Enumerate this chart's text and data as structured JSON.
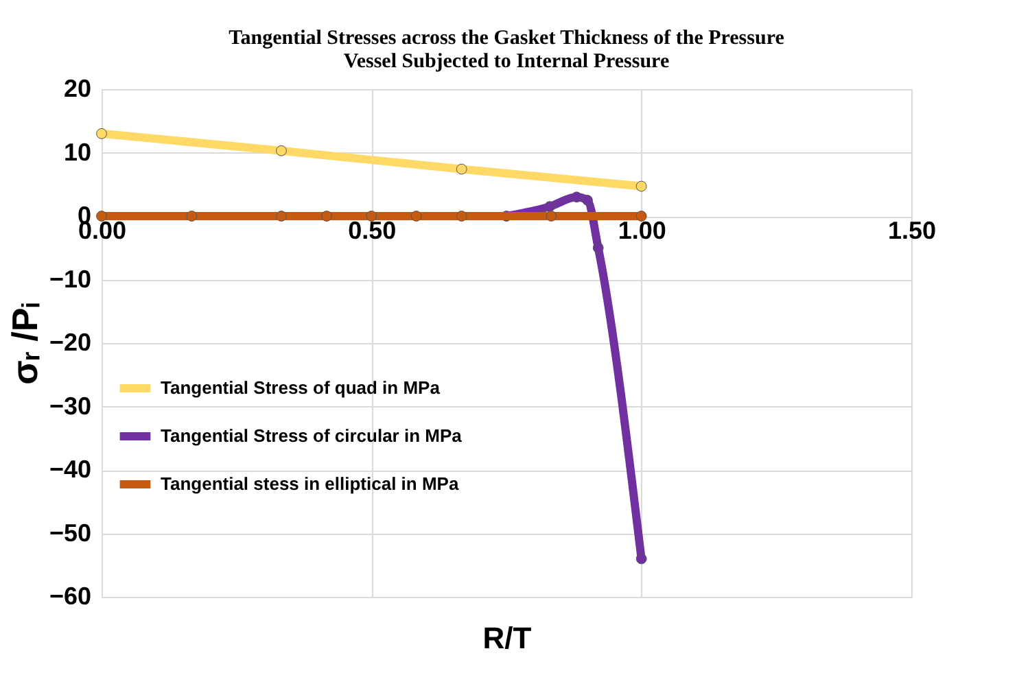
{
  "chart_data": {
    "type": "line",
    "title": [
      "Tangential Stresses across the  Gasket Thickness of the Pressure",
      "Vessel Subjected to Internal Pressure"
    ],
    "xlabel": "R/T",
    "ylabel": "σᵣ /Pᵢ",
    "xlim": [
      0,
      1.5
    ],
    "xticks": [
      {
        "value": 0,
        "label": "0.00"
      },
      {
        "value": 0.5,
        "label": "0.50"
      },
      {
        "value": 1,
        "label": "1.00"
      },
      {
        "value": 1.5,
        "label": "1.50"
      }
    ],
    "ylim": [
      -60,
      20
    ],
    "yticks": [
      -60,
      -50,
      -40,
      -30,
      -20,
      -10,
      0,
      10,
      20
    ],
    "grid": true,
    "legend": "left",
    "marker": "circle",
    "line_style": "solid",
    "series": [
      {
        "name": "Tangential Stress of quad in MPa",
        "color": "#ffd966",
        "x": [
          0,
          0.333,
          0.667,
          1.0
        ],
        "values": [
          13.0,
          10.3,
          7.4,
          4.7
        ]
      },
      {
        "name": "Tangential Stress of circular in MPa",
        "color": "#7030a0",
        "x": [
          0.75,
          0.83,
          0.88,
          0.9,
          0.92,
          1.0
        ],
        "values": [
          0,
          1.5,
          3,
          2.5,
          -5,
          -54
        ]
      },
      {
        "name": "Tangential stess in elliptical in MPa",
        "color": "#c55a11",
        "x": [
          0,
          0.167,
          0.333,
          0.417,
          0.5,
          0.583,
          0.667,
          0.833,
          1.0
        ],
        "values": [
          0,
          0,
          0,
          0,
          0,
          0,
          0,
          0,
          0
        ]
      }
    ]
  }
}
